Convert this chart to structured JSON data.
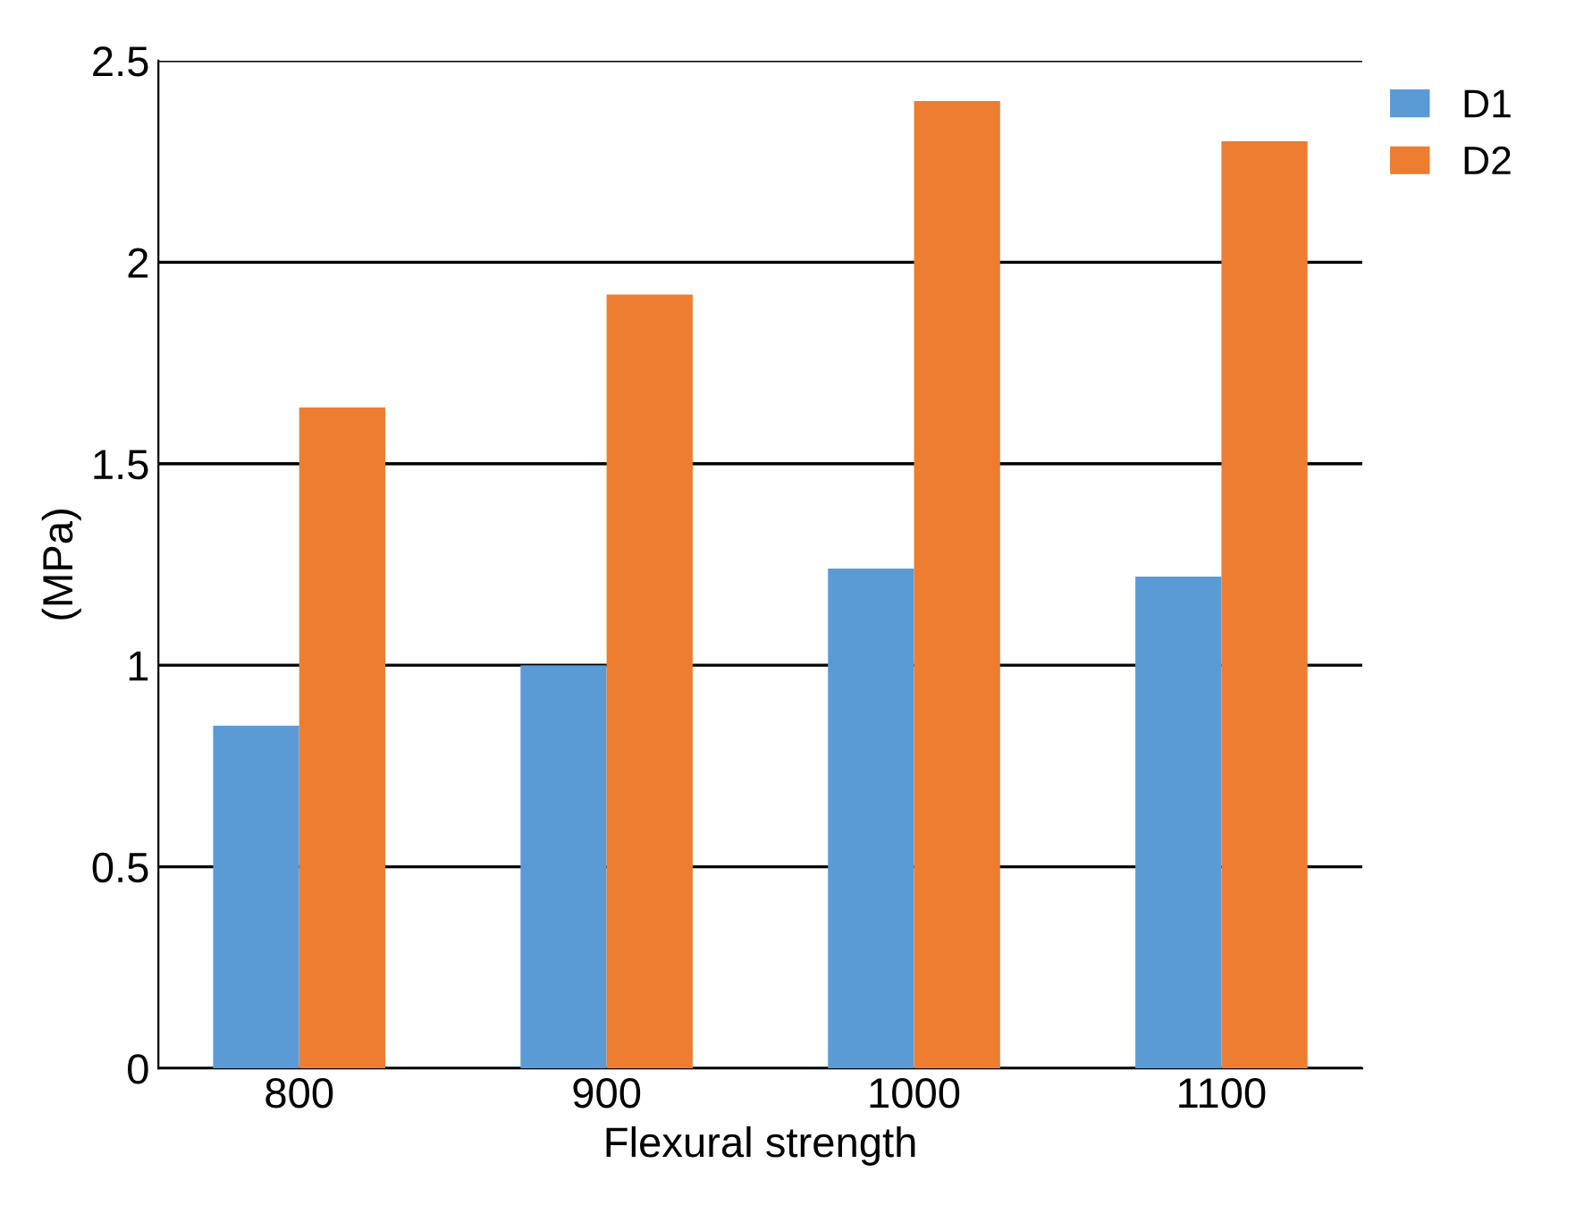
{
  "chart_data": {
    "type": "bar",
    "xlabel": "Flexural strength",
    "ylabel": "(MPa)",
    "categories": [
      "800",
      "900",
      "1000",
      "1100"
    ],
    "series": [
      {
        "name": "D1",
        "color": "#5b9bd5",
        "values": [
          0.85,
          1.0,
          1.24,
          1.22
        ]
      },
      {
        "name": "D2",
        "color": "#ed7d31",
        "values": [
          1.64,
          1.92,
          2.4,
          2.3
        ]
      }
    ],
    "ylim": [
      0,
      2.5
    ],
    "yticks": [
      0,
      0.5,
      1,
      1.5,
      2,
      2.5
    ],
    "grid": "y",
    "legend": "top right"
  }
}
